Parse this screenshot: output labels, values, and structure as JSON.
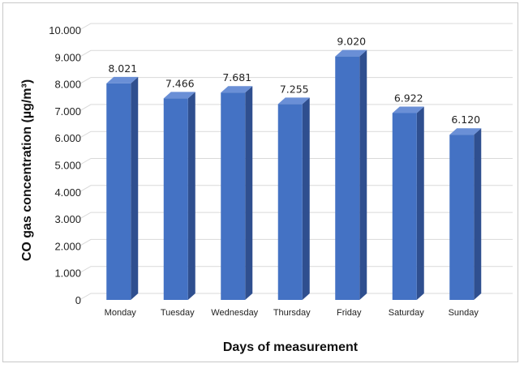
{
  "chart_data": {
    "type": "bar",
    "categories": [
      "Monday",
      "Tuesday",
      "Wednesday",
      "Thursday",
      "Friday",
      "Saturday",
      "Sunday"
    ],
    "values": [
      8.021,
      7.466,
      7.681,
      7.255,
      9.02,
      6.922,
      6.12
    ],
    "value_labels": [
      "8.021",
      "7.466",
      "7.681",
      "7.255",
      "9.020",
      "6.922",
      "6.120"
    ],
    "ylim": [
      0,
      10
    ],
    "y_ticks": [
      0,
      1,
      2,
      3,
      4,
      5,
      6,
      7,
      8,
      9,
      10
    ],
    "y_tick_labels": [
      "0",
      "1.000",
      "2.000",
      "3.000",
      "4.000",
      "5.000",
      "6.000",
      "7.000",
      "8.000",
      "9.000",
      "10.000"
    ],
    "ylabel": "CO gas concentration (µg/m³)",
    "xlabel": "Days of measurement",
    "grid": true,
    "bar_color": "#4472c4",
    "bar_side_color": "#2f4f8f",
    "bar_top_color": "#6a8fd6",
    "grid_color": "#d9d9d9"
  }
}
